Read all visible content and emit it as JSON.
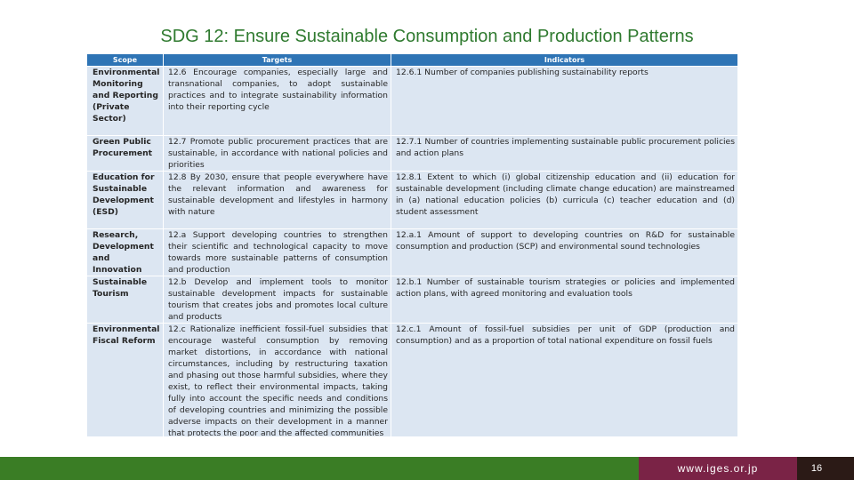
{
  "slide": {
    "title": "SDG 12: Ensure Sustainable Consumption and Production Patterns",
    "footer_url": "www.iges.or.jp",
    "page_number": "16"
  },
  "table": {
    "headers": {
      "scope": "Scope",
      "targets": "Targets",
      "indicators": "Indicators"
    },
    "rows": [
      {
        "scope": "Environmental Monitoring and Reporting (Private Sector)",
        "target": "12.6 Encourage companies, especially large and transnational companies, to adopt sustainable practices and to integrate sustainability information into their reporting cycle",
        "indicator": "12.6.1 Number of companies publishing sustainability reports"
      },
      {
        "scope": "Green Public Procurement",
        "target": "12.7 Promote public procurement practices that are sustainable, in accordance with national policies and priorities",
        "indicator": "12.7.1 Number of countries implementing sustainable public procurement policies and action plans"
      },
      {
        "scope": "Education for Sustainable Development (ESD)",
        "target": "12.8 By 2030, ensure that people everywhere have the relevant information and awareness for sustainable development and lifestyles in harmony with nature",
        "indicator": "12.8.1 Extent to which (i) global citizenship education and (ii) education for sustainable development (including climate change education) are mainstreamed in (a) national education policies (b) curricula (c) teacher education and (d) student assessment"
      },
      {
        "scope": "Research, Development and Innovation",
        "target": "12.a Support developing countries to strengthen their scientific and technological capacity to move towards more sustainable patterns of consumption and production",
        "indicator": "12.a.1 Amount of support to developing countries on R&D for sustainable consumption and production (SCP) and environmental sound technologies"
      },
      {
        "scope": "Sustainable Tourism",
        "target": "12.b Develop and implement tools to monitor sustainable development impacts for sustainable tourism that creates jobs and promotes local culture and products",
        "indicator": "12.b.1 Number of sustainable tourism strategies or policies and implemented action plans, with agreed monitoring and evaluation tools"
      },
      {
        "scope": "Environmental Fiscal Reform",
        "target": "12.c Rationalize inefficient fossil-fuel subsidies that encourage wasteful consumption by removing market distortions, in accordance with national circumstances, including by restructuring taxation and phasing out those harmful subsidies, where they exist, to reflect their environmental impacts, taking fully into account the specific needs and conditions of developing countries and minimizing the possible adverse impacts on their development in a manner that protects the poor and the affected communities",
        "indicator": "12.c.1 Amount of fossil-fuel subsidies per unit of GDP (production and consumption) and as a proportion of total national expenditure on fossil fuels"
      }
    ]
  },
  "colors": {
    "title": "#2f7a2f",
    "header_bg": "#2e74b5",
    "cell_bg": "#dce6f2",
    "footer_green": "#3a7d25",
    "footer_maroon": "#7a2346",
    "footer_dark": "#2b1a16"
  }
}
